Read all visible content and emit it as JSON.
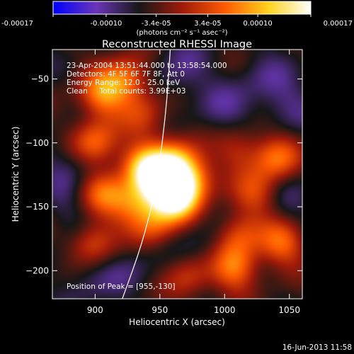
{
  "chart_data": {
    "type": "heatmap",
    "title": "Reconstructed RHESSI Image",
    "xlabel": "Heliocentric X (arcsec)",
    "ylabel": "Heliocentric Y (arcsec)",
    "xlim": [
      867,
      1060
    ],
    "ylim": [
      -222,
      -27
    ],
    "xticks": [
      900,
      950,
      1000,
      1050
    ],
    "yticks": [
      -50,
      -100,
      -150,
      -200
    ],
    "colorbar": {
      "range": [
        -0.00017,
        0.00017
      ],
      "tick_values": [
        -0.00017,
        -0.0001,
        -3.4e-05,
        3.4e-05,
        0.0001,
        0.00017
      ],
      "tick_labels": [
        "-0.00017",
        "-0.00010",
        "-3.4e-05",
        "3.4e-05",
        "0.00010",
        "0.00017"
      ],
      "units_label": "(photons cm⁻² s⁻¹ asec⁻²)",
      "colormap": [
        "#0000ff",
        "#6a36b8",
        "#171717",
        "#9e1a0a",
        "#ff5a00",
        "#ffd21a",
        "#ffffff"
      ]
    },
    "annotations": {
      "time_range": "23-Apr-2004 13:51:44.000 to 13:58:54.000",
      "detectors": "Detectors: 4F 5F 6F 7F 8F, Att 0",
      "energy_range": "Energy Range: 12.0 - 25.0 keV",
      "method_counts": "Clean     Total counts: 3.99E+03",
      "peak_position": "Position of Peak = [955,-130]"
    },
    "peak": [
      955,
      -130
    ],
    "limb_curve": [
      [
        921,
        -222
      ],
      [
        936,
        -180
      ],
      [
        946,
        -140
      ],
      [
        952,
        -100
      ],
      [
        956,
        -60
      ],
      [
        958,
        -27
      ]
    ],
    "sources": [
      {
        "x": 953,
        "y": -130,
        "intensity": 1.0
      },
      {
        "x": 962,
        "y": -143,
        "intensity": 0.85
      },
      {
        "x": 937,
        "y": -118,
        "intensity": 0.62
      },
      {
        "x": 975,
        "y": -128,
        "intensity": 0.5
      },
      {
        "x": 930,
        "y": -148,
        "intensity": 0.48
      },
      {
        "x": 962,
        "y": -112,
        "intensity": 0.45
      },
      {
        "x": 945,
        "y": -165,
        "intensity": 0.38
      },
      {
        "x": 900,
        "y": -100,
        "intensity": 0.52
      },
      {
        "x": 905,
        "y": -140,
        "intensity": 0.45
      },
      {
        "x": 898,
        "y": -178,
        "intensity": 0.5
      },
      {
        "x": 905,
        "y": -62,
        "intensity": 0.55
      },
      {
        "x": 925,
        "y": -50,
        "intensity": 0.5
      },
      {
        "x": 1008,
        "y": -198,
        "intensity": 0.55
      },
      {
        "x": 1045,
        "y": -178,
        "intensity": 0.5
      },
      {
        "x": 1040,
        "y": -112,
        "intensity": 0.5
      },
      {
        "x": 1010,
        "y": -172,
        "intensity": 0.4
      },
      {
        "x": 972,
        "y": -205,
        "intensity": 0.35
      },
      {
        "x": 1025,
        "y": -140,
        "intensity": 0.38
      },
      {
        "x": 938,
        "y": -78,
        "intensity": 0.3
      },
      {
        "x": 1012,
        "y": -105,
        "intensity": 0.3
      }
    ],
    "negatives": [
      {
        "x": 965,
        "y": -45,
        "intensity": 0.6
      },
      {
        "x": 880,
        "y": -118,
        "intensity": 0.55
      },
      {
        "x": 1000,
        "y": -75,
        "intensity": 0.5
      },
      {
        "x": 895,
        "y": -205,
        "intensity": 0.5
      },
      {
        "x": 985,
        "y": -182,
        "intensity": 0.45
      },
      {
        "x": 1048,
        "y": -70,
        "intensity": 0.5
      },
      {
        "x": 930,
        "y": -195,
        "intensity": 0.4
      },
      {
        "x": 1050,
        "y": -145,
        "intensity": 0.45
      },
      {
        "x": 885,
        "y": -160,
        "intensity": 0.45
      },
      {
        "x": 1030,
        "y": -50,
        "intensity": 0.4
      }
    ]
  },
  "footer": {
    "timestamp": "16-Jun-2013 11:58"
  },
  "colors": {
    "background": "#000000",
    "text": "#ffffff",
    "limb": "#ffffff"
  }
}
